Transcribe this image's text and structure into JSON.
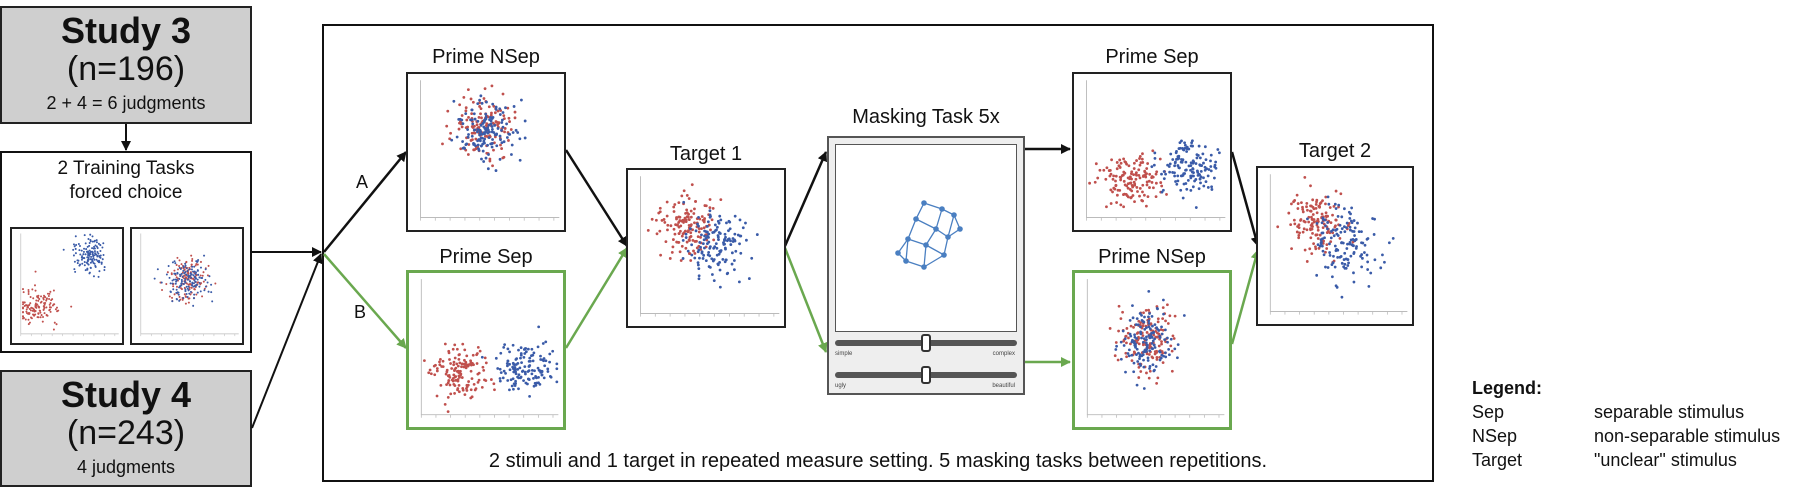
{
  "study3": {
    "title": "Study 3",
    "n": "(n=196)",
    "judgments": "2 + 4 = 6 judgments"
  },
  "training": {
    "line1": "2 Training Tasks",
    "line2": "forced choice"
  },
  "study4": {
    "title": "Study 4",
    "n": "(n=243)",
    "judgments": "4 judgments"
  },
  "path_labels": {
    "a": "A",
    "b": "B"
  },
  "stages": {
    "prime_nsep_1": "Prime NSep",
    "prime_sep_1": "Prime Sep",
    "target_1": "Target 1",
    "masking": "Masking Task 5x",
    "prime_sep_2": "Prime Sep",
    "prime_nsep_2": "Prime NSep",
    "target_2": "Target 2"
  },
  "mask_sliders": [
    {
      "left": "simple",
      "right": "complex"
    },
    {
      "left": "ugly",
      "right": "beautiful"
    }
  ],
  "caption": "2 stimuli and 1 target in repeated measure setting. 5 masking tasks between repetitions.",
  "legend": {
    "heading": "Legend:",
    "rows": [
      {
        "key": "Sep",
        "value": "separable stimulus"
      },
      {
        "key": "NSep",
        "value": "non-separable stimulus"
      },
      {
        "key": "Target",
        "value": "\"unclear\" stimulus"
      }
    ]
  },
  "colors": {
    "red": "#c0504d",
    "blue": "#3a5ba8",
    "green": "#6aa84f",
    "black": "#111111"
  }
}
